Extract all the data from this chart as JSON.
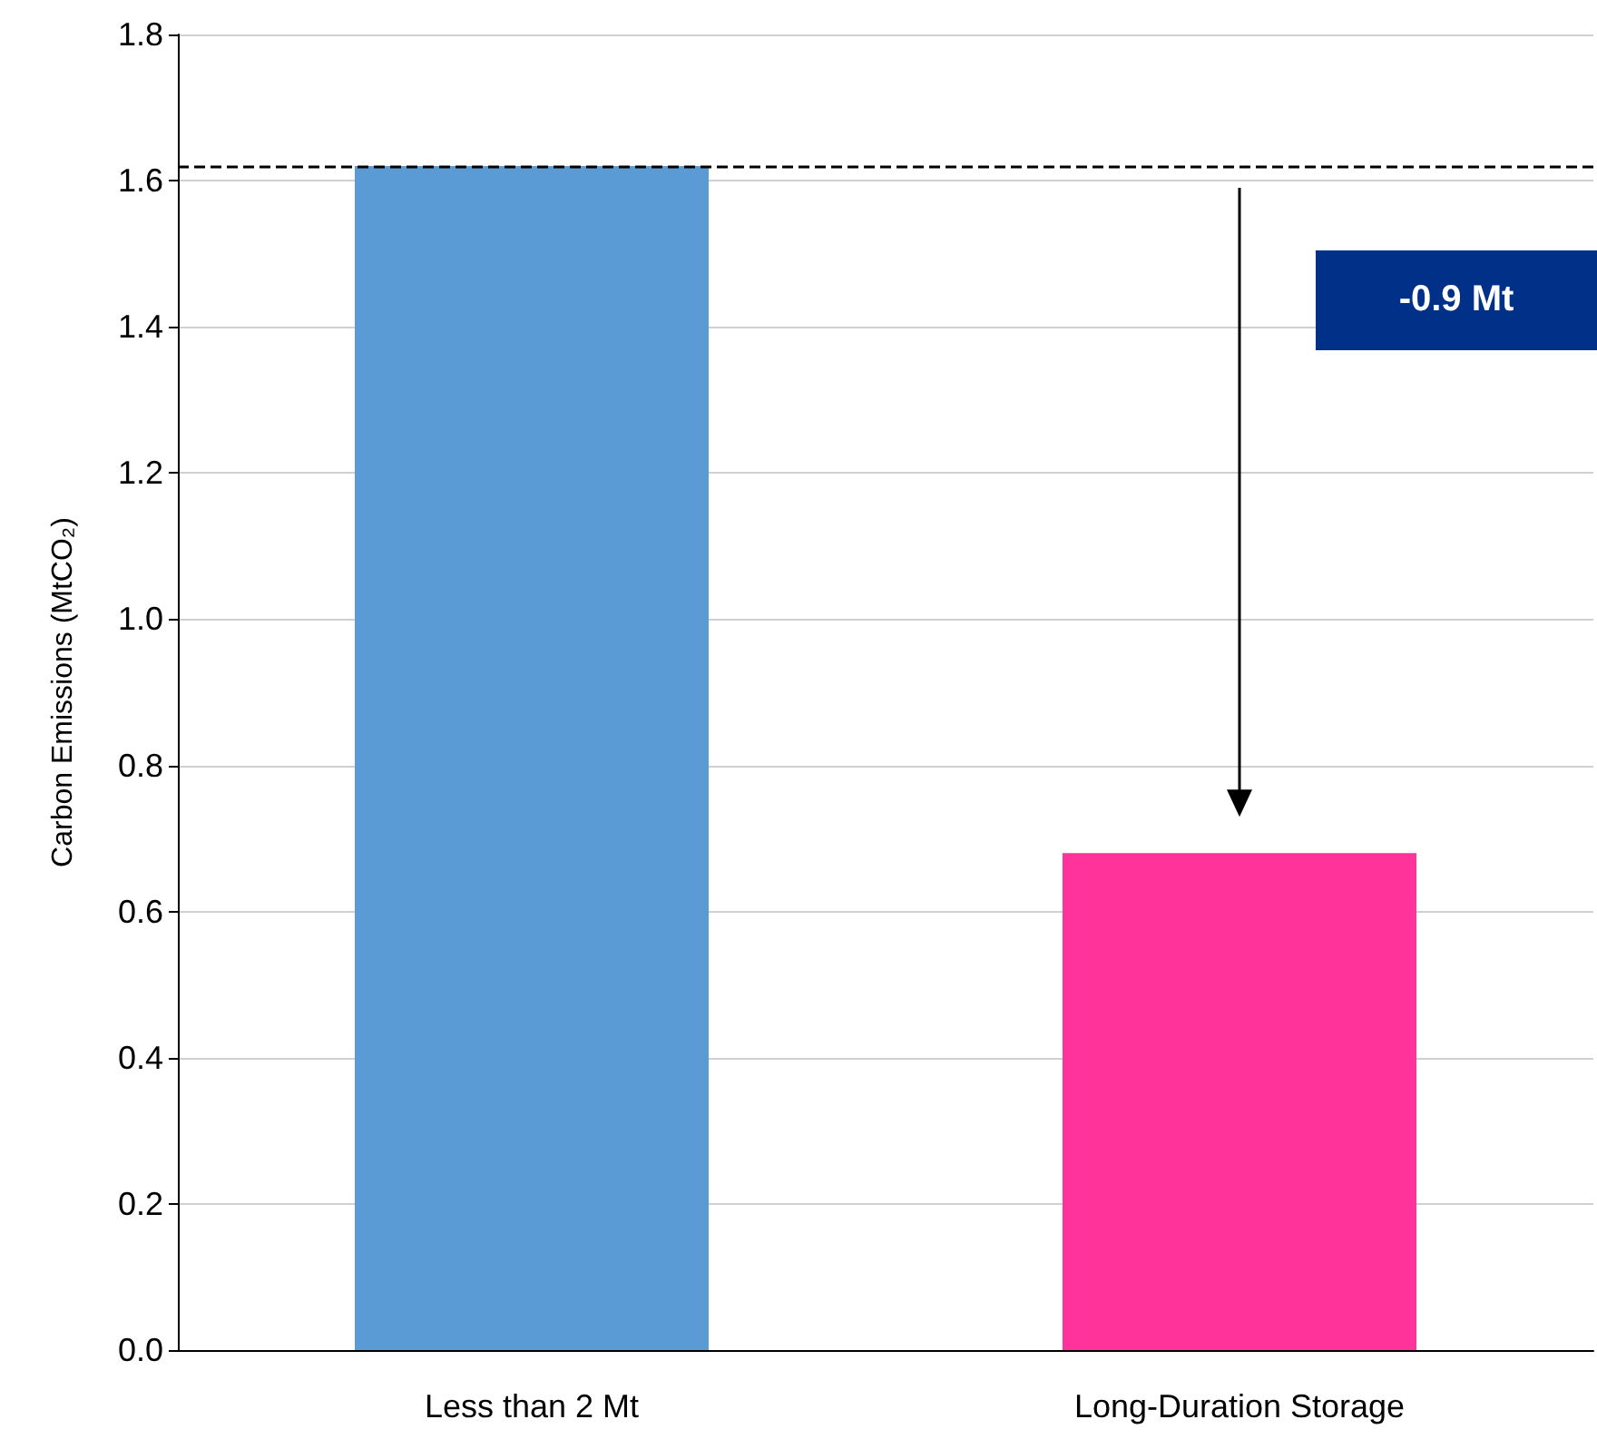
{
  "chart_data": {
    "type": "bar",
    "ylabel": "Carbon Emissions (MtCO₂)",
    "categories": [
      "Less than 2 Mt",
      "Long-Duration Storage"
    ],
    "values": [
      1.62,
      0.68
    ],
    "colors": [
      "#5b9bd5",
      "#ff3399"
    ],
    "ylim": [
      0,
      1.8
    ],
    "yticks": [
      {
        "value": 0,
        "label": "0.0"
      },
      {
        "value": 0.2,
        "label": "0.2"
      },
      {
        "value": 0.4,
        "label": "0.4"
      },
      {
        "value": 0.6,
        "label": "0.6"
      },
      {
        "value": 0.8,
        "label": "0.8"
      },
      {
        "value": 1,
        "label": "1.0"
      },
      {
        "value": 1.2,
        "label": "1.2"
      },
      {
        "value": 1.4,
        "label": "1.4"
      },
      {
        "value": 1.6,
        "label": "1.6"
      },
      {
        "value": 1.8,
        "label": "1.8"
      }
    ],
    "grid": "y",
    "ref_lines": [
      {
        "axis": "y",
        "value": 1.62,
        "color": "#000000",
        "line_style": "dashed"
      }
    ],
    "annotations": [
      "-0.9 Mt"
    ]
  }
}
